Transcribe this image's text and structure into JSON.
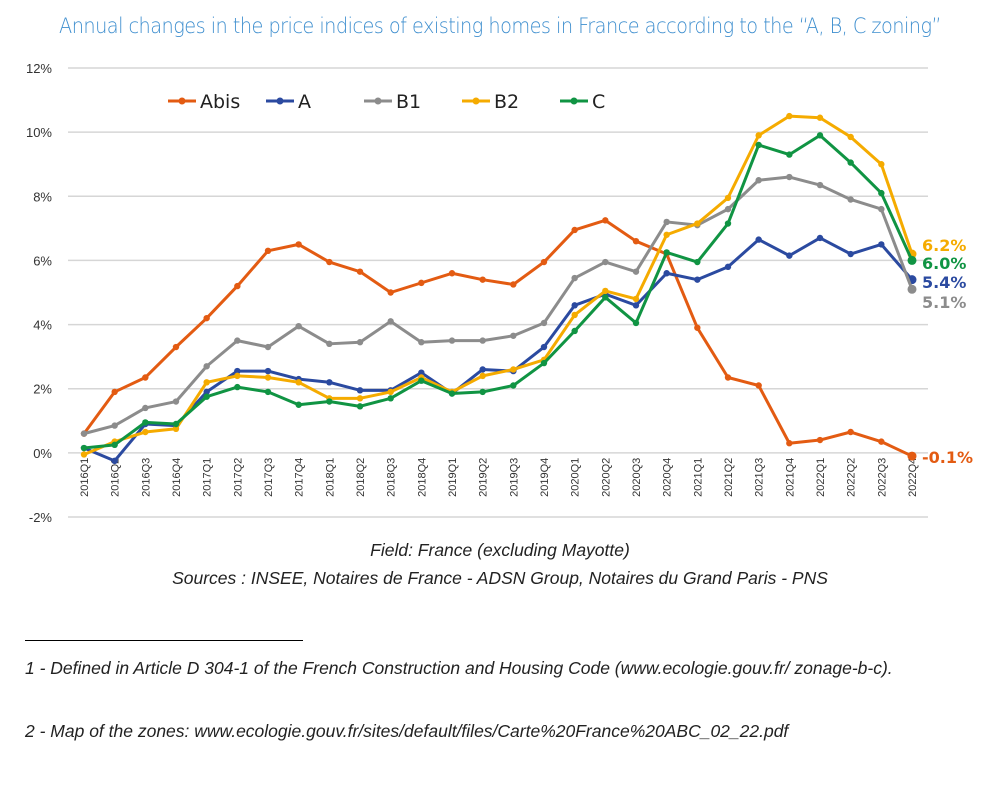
{
  "chart_data": {
    "type": "line",
    "title": "Annual changes in the price indices of existing homes in France according to the “A, B, C zoning”",
    "xlabel": "",
    "ylabel": "",
    "ylim": [
      -2,
      12
    ],
    "yticks": [
      "-2%",
      "0%",
      "2%",
      "4%",
      "6%",
      "8%",
      "10%",
      "12%"
    ],
    "grid": true,
    "legend_position": "top-left",
    "categories": [
      "2016Q1",
      "2016Q2",
      "2016Q3",
      "2016Q4",
      "2017Q1",
      "2017Q2",
      "2017Q3",
      "2017Q4",
      "2018Q1",
      "2018Q2",
      "2018Q3",
      "2018Q4",
      "2019Q1",
      "2019Q2",
      "2019Q3",
      "2019Q4",
      "2020Q1",
      "2020Q2",
      "2020Q3",
      "2020Q4",
      "2021Q1",
      "2021Q2",
      "2021Q3",
      "2021Q4",
      "2022Q1",
      "2022Q2",
      "2022Q3",
      "2022Q4"
    ],
    "series": [
      {
        "name": "Abis",
        "color": "#e35b12",
        "end_label": "-0.1%",
        "values": [
          0.6,
          1.9,
          2.35,
          3.3,
          4.2,
          5.2,
          6.3,
          6.5,
          5.95,
          5.65,
          5.0,
          5.3,
          5.6,
          5.4,
          5.25,
          5.95,
          6.95,
          7.25,
          6.6,
          6.2,
          3.9,
          2.35,
          2.1,
          0.3,
          0.4,
          0.65,
          0.35,
          -0.1
        ]
      },
      {
        "name": "A",
        "color": "#2b4aa0",
        "end_label": "5.4%",
        "values": [
          0.15,
          -0.25,
          0.9,
          0.85,
          1.9,
          2.55,
          2.55,
          2.3,
          2.2,
          1.95,
          1.95,
          2.5,
          1.85,
          2.6,
          2.55,
          3.3,
          4.6,
          4.95,
          4.6,
          5.6,
          5.4,
          5.8,
          6.65,
          6.15,
          6.7,
          6.2,
          6.5,
          5.4
        ]
      },
      {
        "name": "B1",
        "color": "#8c8c8c",
        "end_label": "5.1%",
        "values": [
          0.6,
          0.85,
          1.4,
          1.6,
          2.7,
          3.5,
          3.3,
          3.95,
          3.4,
          3.45,
          4.1,
          3.45,
          3.5,
          3.5,
          3.65,
          4.05,
          5.45,
          5.95,
          5.65,
          7.2,
          7.1,
          7.6,
          8.5,
          8.6,
          8.35,
          7.9,
          7.6,
          5.1
        ]
      },
      {
        "name": "B2",
        "color": "#f5ab00",
        "end_label": "6.2%",
        "values": [
          -0.05,
          0.35,
          0.65,
          0.75,
          2.2,
          2.4,
          2.35,
          2.2,
          1.7,
          1.7,
          1.9,
          2.35,
          1.9,
          2.4,
          2.6,
          2.9,
          4.3,
          5.05,
          4.8,
          6.8,
          7.15,
          7.95,
          9.9,
          10.5,
          10.45,
          9.85,
          9.0,
          6.2
        ]
      },
      {
        "name": "C",
        "color": "#109443",
        "end_label": "6.0%",
        "values": [
          0.15,
          0.25,
          0.95,
          0.9,
          1.75,
          2.05,
          1.9,
          1.5,
          1.6,
          1.45,
          1.7,
          2.25,
          1.85,
          1.9,
          2.1,
          2.8,
          3.8,
          4.85,
          4.05,
          6.25,
          5.95,
          7.15,
          9.6,
          9.3,
          9.9,
          9.05,
          8.1,
          6.0
        ]
      }
    ]
  },
  "captions": {
    "field": "Field: France (excluding Mayotte)",
    "sources": "Sources : INSEE, Notaires de France - ADSN Group, Notaires du Grand Paris - PNS"
  },
  "footnotes": [
    "1 - Defined in Article D 304-1 of the French Construction and Housing Code (www.ecologie.gouv.fr/ zonage-b-c).",
    "2 - Map of the zones: www.ecologie.gouv.fr/sites/default/files/Carte%20France%20ABC_02_22.pdf"
  ]
}
